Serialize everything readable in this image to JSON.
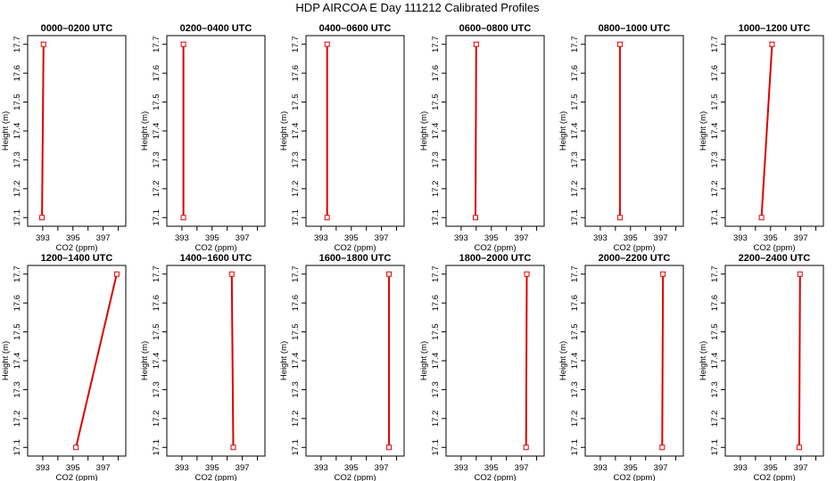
{
  "figure": {
    "title": "HDP AIRCOA E  Day 111212  Calibrated Profiles"
  },
  "chart_data": {
    "type": "line",
    "shared": {
      "xlabel": "CO2 (ppm)",
      "ylabel": "Height (m)",
      "xlim": [
        392,
        398.5
      ],
      "ylim": [
        17.07,
        17.73
      ],
      "xticks": [
        393,
        394,
        395,
        396,
        397,
        398
      ],
      "xticklabels": [
        "393",
        "",
        "395",
        "",
        "397",
        ""
      ],
      "yticks": [
        17.1,
        17.2,
        17.3,
        17.4,
        17.5,
        17.6,
        17.7
      ],
      "yticklabels": [
        "17.1",
        "17.2",
        "17.3",
        "17.4",
        "17.5",
        "17.6",
        "17.7"
      ],
      "line_color": "#dd0000",
      "marker": "open-square",
      "grid": false
    },
    "panels": [
      {
        "title": "0000–0200 UTC",
        "x": [
          392.95,
          393.05
        ],
        "y": [
          17.1,
          17.7
        ]
      },
      {
        "title": "0200–0400 UTC",
        "x": [
          393.1,
          393.1
        ],
        "y": [
          17.1,
          17.7
        ]
      },
      {
        "title": "0400–0600 UTC",
        "x": [
          393.4,
          393.4
        ],
        "y": [
          17.1,
          17.7
        ]
      },
      {
        "title": "0600–0800 UTC",
        "x": [
          393.95,
          394.0
        ],
        "y": [
          17.1,
          17.7
        ]
      },
      {
        "title": "0800–1000 UTC",
        "x": [
          394.3,
          394.3
        ],
        "y": [
          17.1,
          17.7
        ]
      },
      {
        "title": "1000–1200 UTC",
        "x": [
          394.4,
          395.1
        ],
        "y": [
          17.1,
          17.7
        ]
      },
      {
        "title": "1200–1400 UTC",
        "x": [
          395.2,
          397.9
        ],
        "y": [
          17.1,
          17.7
        ]
      },
      {
        "title": "1400–1600 UTC",
        "x": [
          396.4,
          396.3
        ],
        "y": [
          17.1,
          17.7
        ]
      },
      {
        "title": "1600–1800 UTC",
        "x": [
          397.5,
          397.5
        ],
        "y": [
          17.1,
          17.7
        ]
      },
      {
        "title": "1800–2000 UTC",
        "x": [
          397.3,
          397.35
        ],
        "y": [
          17.1,
          17.7
        ]
      },
      {
        "title": "2000–2200 UTC",
        "x": [
          397.1,
          397.15
        ],
        "y": [
          17.1,
          17.7
        ]
      },
      {
        "title": "2200–2400 UTC",
        "x": [
          396.9,
          396.95
        ],
        "y": [
          17.1,
          17.7
        ]
      }
    ]
  }
}
